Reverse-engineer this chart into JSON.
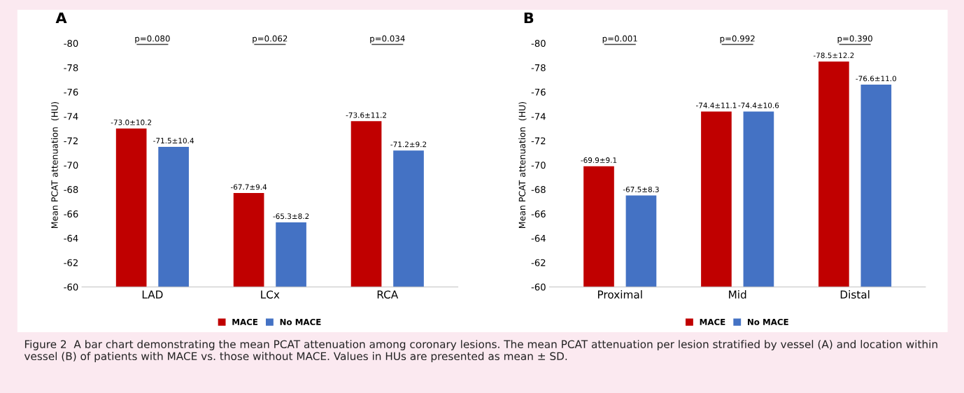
{
  "chart_data": [
    {
      "type": "bar",
      "title": "A",
      "ylabel": "Mean PCAT attenuation  (HU)",
      "categories": [
        "LAD",
        "LCx",
        "RCA"
      ],
      "series": [
        {
          "name": "MACE",
          "color": "#c00000",
          "values": [
            -73.0,
            -67.7,
            -73.6
          ],
          "value_labels": [
            "-73.0±10.2",
            "-67.7±9.4",
            "-73.6±11.2"
          ]
        },
        {
          "name": "No MACE",
          "color": "#4472c4",
          "values": [
            -71.5,
            -65.3,
            -71.2
          ],
          "value_labels": [
            "-71.5±10.4",
            "-65.3±8.2",
            "-71.2±9.2"
          ]
        }
      ],
      "ylim": [
        -60,
        -80
      ],
      "yticks": [
        -60,
        -62,
        -64,
        -66,
        -68,
        -70,
        -72,
        -74,
        -76,
        -78,
        -80
      ],
      "grid": false,
      "legend": "bottom",
      "annotations": [
        "p=0.080",
        "p=0.062",
        "p=0.034"
      ]
    },
    {
      "type": "bar",
      "title": "B",
      "ylabel": "Mean PCAT attenuation  (HU)",
      "categories": [
        "Proximal",
        "Mid",
        "Distal"
      ],
      "series": [
        {
          "name": "MACE",
          "color": "#c00000",
          "values": [
            -69.9,
            -74.4,
            -78.5
          ],
          "value_labels": [
            "-69.9±9.1",
            "-74.4±11.1",
            "-78.5±12.2"
          ]
        },
        {
          "name": "No MACE",
          "color": "#4472c4",
          "values": [
            -67.5,
            -74.4,
            -76.6
          ],
          "value_labels": [
            "-67.5±8.3",
            "-74.4±10.6",
            "-76.6±11.0"
          ]
        }
      ],
      "ylim": [
        -60,
        -80
      ],
      "yticks": [
        -60,
        -62,
        -64,
        -66,
        -68,
        -70,
        -72,
        -74,
        -76,
        -78,
        -80
      ],
      "grid": false,
      "legend": "bottom",
      "annotations": [
        "p=0.001",
        "p=0.992",
        "p=0.390",
        "Figure 2  A bar chart demonstrating the mean PCAT attenuation among coronary lesions. The mean PCAT attenuation per lesion stratified by vessel (A) and location within vessel (B) of patients with MACE vs. those without MACE. Values in HUs are presented as mean ± SD."
      ]
    }
  ]
}
